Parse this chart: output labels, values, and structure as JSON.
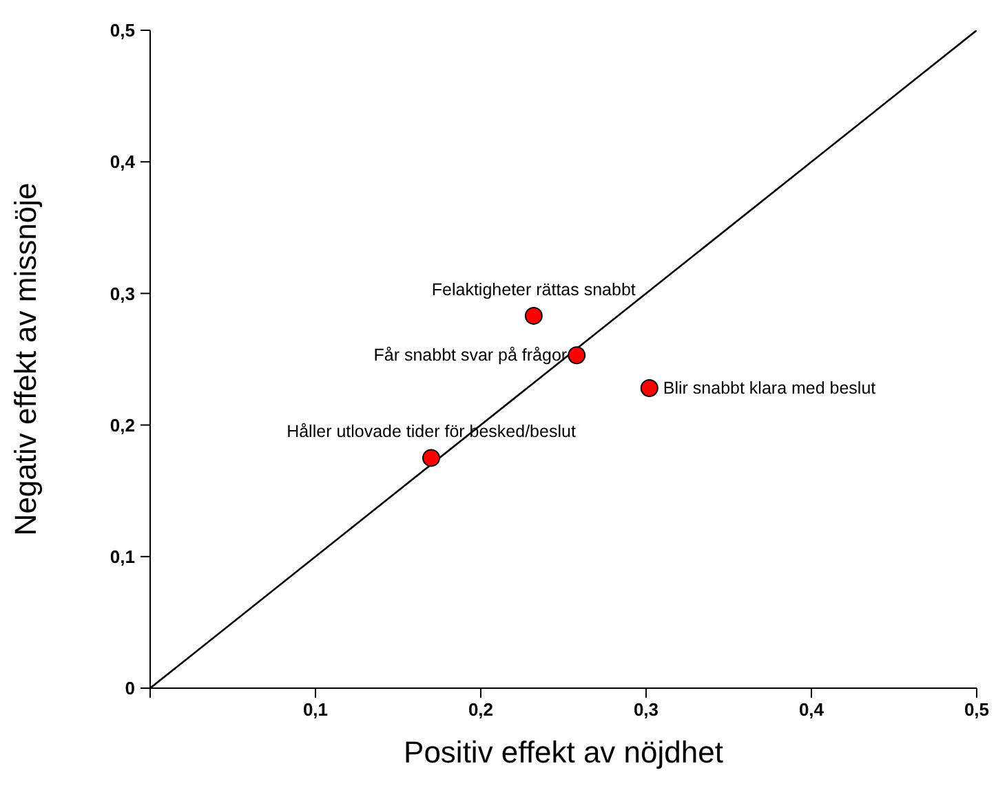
{
  "chart_data": {
    "type": "scatter",
    "xlabel": "Positiv effekt av nöjdhet",
    "ylabel": "Negativ effekt av missnöje",
    "xlim": [
      0,
      0.5
    ],
    "ylim": [
      0,
      0.5
    ],
    "xticks": [
      {
        "value": 0,
        "label": null
      },
      {
        "value": 0.1,
        "label": "0,1"
      },
      {
        "value": 0.2,
        "label": "0,2"
      },
      {
        "value": 0.3,
        "label": "0,3"
      },
      {
        "value": 0.4,
        "label": "0,4"
      },
      {
        "value": 0.5,
        "label": "0,5"
      }
    ],
    "yticks": [
      {
        "value": 0,
        "label": "0"
      },
      {
        "value": 0.1,
        "label": "0,1"
      },
      {
        "value": 0.2,
        "label": "0,2"
      },
      {
        "value": 0.3,
        "label": "0,3"
      },
      {
        "value": 0.4,
        "label": "0,4"
      },
      {
        "value": 0.5,
        "label": "0,5"
      }
    ],
    "grid": false,
    "legend": false,
    "series": [
      {
        "color": "#ff0000",
        "marker": "circle",
        "x": [
          0.232,
          0.258,
          0.302,
          0.17
        ],
        "values": [
          0.283,
          0.253,
          0.228,
          0.175
        ]
      },
      {
        "type": "line",
        "color": "#000000",
        "marker": "none",
        "line_style": "solid",
        "x": [
          0,
          0.5
        ],
        "values": [
          0,
          0.5
        ]
      }
    ],
    "annotations": [
      {
        "text": "Felaktigheter rättas snabbt",
        "x": 0.232,
        "y": 0.283
      },
      {
        "text": "Får snabbt svar på frågor",
        "x": 0.258,
        "y": 0.253
      },
      {
        "text": "Blir snabbt klara med beslut",
        "x": 0.302,
        "y": 0.228
      },
      {
        "text": "Håller utlovade tider för besked/beslut",
        "x": 0.17,
        "y": 0.175
      }
    ]
  }
}
